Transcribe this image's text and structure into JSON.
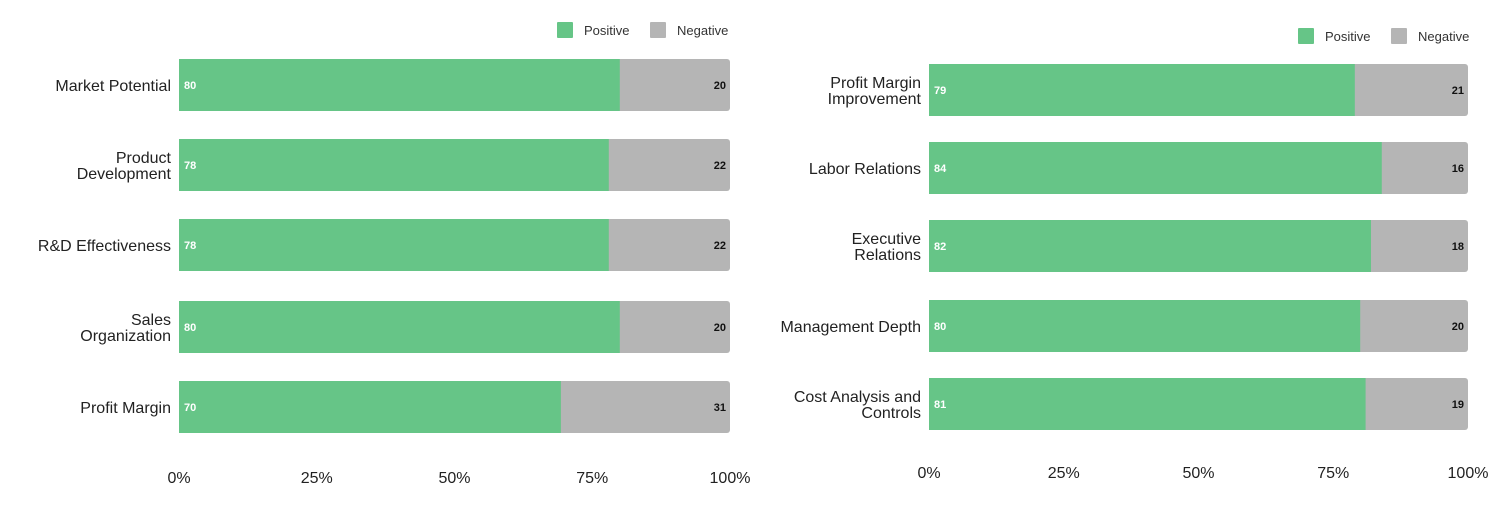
{
  "chart_data": [
    {
      "type": "bar",
      "orientation": "horizontal",
      "stacked": true,
      "normalized": true,
      "title": "",
      "xlabel": "",
      "ylabel": "",
      "categories": [
        "Market Potential",
        "Product Development",
        "R&D Effectiveness",
        "Sales Organization",
        "Profit Margin"
      ],
      "series": [
        {
          "name": "Positive",
          "color": "#66c587",
          "values": [
            80,
            78,
            78,
            80,
            70
          ]
        },
        {
          "name": "Negative",
          "color": "#b5b5b5",
          "values": [
            20,
            22,
            22,
            20,
            31
          ]
        }
      ],
      "xlim": [
        0,
        100
      ],
      "x_ticks": [
        "0%",
        "25%",
        "50%",
        "75%",
        "100%"
      ],
      "legend": "top-right",
      "grid": false
    },
    {
      "type": "bar",
      "orientation": "horizontal",
      "stacked": true,
      "normalized": true,
      "title": "",
      "xlabel": "",
      "ylabel": "",
      "categories": [
        "Profit Margin Improvement",
        "Labor Relations",
        "Executive Relations",
        "Management Depth",
        "Cost Analysis and Controls"
      ],
      "series": [
        {
          "name": "Positive",
          "color": "#66c587",
          "values": [
            79,
            84,
            82,
            80,
            81
          ]
        },
        {
          "name": "Negative",
          "color": "#b5b5b5",
          "values": [
            21,
            16,
            18,
            20,
            19
          ]
        }
      ],
      "xlim": [
        0,
        100
      ],
      "x_ticks": [
        "0%",
        "25%",
        "50%",
        "75%",
        "100%"
      ],
      "legend": "top-right",
      "grid": false
    }
  ]
}
